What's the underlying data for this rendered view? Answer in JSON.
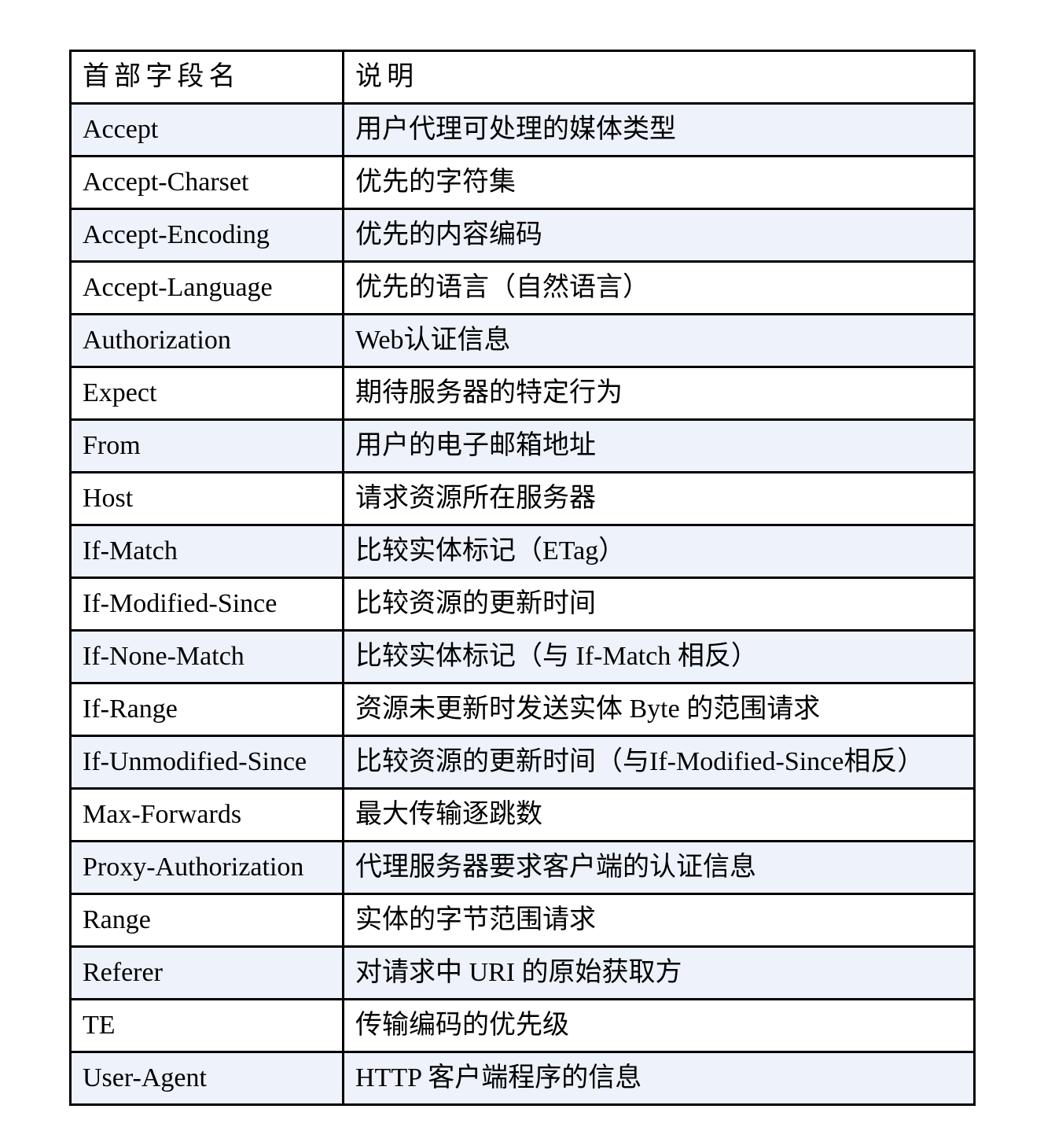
{
  "table": {
    "title_semantic": "http-request-header-fields",
    "columns": [
      "首部字段名",
      "说明"
    ],
    "rows": [
      {
        "field": "Accept",
        "description": "用户代理可处理的媒体类型"
      },
      {
        "field": "Accept-Charset",
        "description": "优先的字符集"
      },
      {
        "field": "Accept-Encoding",
        "description": "优先的内容编码"
      },
      {
        "field": "Accept-Language",
        "description": "优先的语言（自然语言）"
      },
      {
        "field": "Authorization",
        "description": "Web认证信息"
      },
      {
        "field": "Expect",
        "description": "期待服务器的特定行为"
      },
      {
        "field": "From",
        "description": "用户的电子邮箱地址"
      },
      {
        "field": "Host",
        "description": "请求资源所在服务器"
      },
      {
        "field": "If-Match",
        "description": "比较实体标记（ETag）"
      },
      {
        "field": "If-Modified-Since",
        "description": "比较资源的更新时间"
      },
      {
        "field": "If-None-Match",
        "description": "比较实体标记（与 If-Match 相反）"
      },
      {
        "field": "If-Range",
        "description": "资源未更新时发送实体 Byte 的范围请求"
      },
      {
        "field": "If-Unmodified-Since",
        "description": "比较资源的更新时间（与If-Modified-Since相反）"
      },
      {
        "field": "Max-Forwards",
        "description": "最大传输逐跳数"
      },
      {
        "field": "Proxy-Authorization",
        "description": "代理服务器要求客户端的认证信息"
      },
      {
        "field": "Range",
        "description": "实体的字节范围请求"
      },
      {
        "field": "Referer",
        "description": "对请求中 URI 的原始获取方"
      },
      {
        "field": "TE",
        "description": "传输编码的优先级"
      },
      {
        "field": "User-Agent",
        "description": "HTTP 客户端程序的信息"
      }
    ],
    "colors": {
      "row_alt_background": "#edf2fb",
      "row_base_background": "#ffffff",
      "border": "#000000",
      "text": "#000000"
    }
  }
}
